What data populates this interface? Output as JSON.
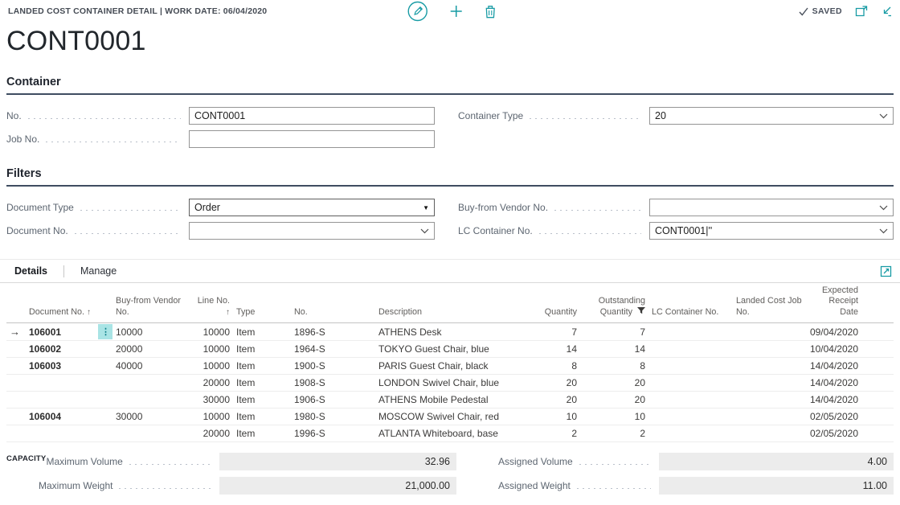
{
  "command_bar": {
    "caption": "LANDED COST CONTAINER DETAIL | WORK DATE: 06/04/2020",
    "saved_label": "SAVED"
  },
  "page": {
    "title": "CONT0001"
  },
  "icons": {
    "edit": "pencil-in-circle",
    "new": "plus",
    "delete": "trash",
    "saved_check": "check",
    "open_in_window": "popout-window",
    "collapse": "collapse-arrow",
    "expand_table": "expand-diagonal",
    "row_options": "vertical-dots",
    "selected_row": "arrow-right",
    "sort_ascending": "arrow-up",
    "filter": "funnel",
    "combo": "chevron-down",
    "select": "triangle-down"
  },
  "colors": {
    "accent_teal": "#179ba4",
    "heading_rule": "#3f4d61",
    "readonly_bg": "#ececec",
    "dots_button_bg": "#a9e4e5"
  },
  "container_section": {
    "heading": "Container",
    "fields": {
      "no": {
        "label": "No.",
        "value": "CONT0001"
      },
      "job_no": {
        "label": "Job No.",
        "value": ""
      },
      "container_type": {
        "label": "Container Type",
        "value": "20"
      }
    }
  },
  "filters_section": {
    "heading": "Filters",
    "fields": {
      "document_type": {
        "label": "Document Type",
        "value": "Order"
      },
      "document_no": {
        "label": "Document No.",
        "value": ""
      },
      "buy_from_vendor_no": {
        "label": "Buy-from Vendor No.",
        "value": ""
      },
      "lc_container_no": {
        "label": "LC Container No.",
        "value": "CONT0001|''"
      }
    }
  },
  "details": {
    "tabs": [
      {
        "label": "Details"
      },
      {
        "label": "Manage"
      }
    ],
    "columns": [
      {
        "key": "doc_no",
        "label": "Document No.",
        "sort": "asc",
        "align": "left"
      },
      {
        "key": "buy_from_vendor_no",
        "label": "Buy-from Vendor No.",
        "align": "left"
      },
      {
        "key": "line_no",
        "label": "Line No.",
        "sort": "asc",
        "align": "right"
      },
      {
        "key": "type",
        "label": "Type",
        "align": "left"
      },
      {
        "key": "no",
        "label": "No.",
        "align": "left"
      },
      {
        "key": "description",
        "label": "Description",
        "align": "left"
      },
      {
        "key": "quantity",
        "label": "Quantity",
        "align": "right"
      },
      {
        "key": "outstanding_quantity",
        "label": "Outstanding Quantity",
        "align": "right",
        "filtered": true
      },
      {
        "key": "lc_container_no",
        "label": "LC Container No.",
        "align": "left"
      },
      {
        "key": "landed_cost_job_no",
        "label": "Landed Cost Job No.",
        "align": "left"
      },
      {
        "key": "expected_receipt_date",
        "label": "Expected Receipt Date",
        "align": "right"
      }
    ],
    "rows": [
      {
        "selected": true,
        "doc_no": "106001",
        "buy_from_vendor_no": "10000",
        "line_no": "10000",
        "type": "Item",
        "no": "1896-S",
        "description": "ATHENS Desk",
        "quantity": "7",
        "outstanding_quantity": "7",
        "lc_container_no": "",
        "landed_cost_job_no": "",
        "expected_receipt_date": "09/04/2020"
      },
      {
        "selected": false,
        "doc_no": "106002",
        "buy_from_vendor_no": "20000",
        "line_no": "10000",
        "type": "Item",
        "no": "1964-S",
        "description": "TOKYO Guest Chair, blue",
        "quantity": "14",
        "outstanding_quantity": "14",
        "lc_container_no": "",
        "landed_cost_job_no": "",
        "expected_receipt_date": "10/04/2020"
      },
      {
        "selected": false,
        "doc_no": "106003",
        "buy_from_vendor_no": "40000",
        "line_no": "10000",
        "type": "Item",
        "no": "1900-S",
        "description": "PARIS Guest Chair, black",
        "quantity": "8",
        "outstanding_quantity": "8",
        "lc_container_no": "",
        "landed_cost_job_no": "",
        "expected_receipt_date": "14/04/2020"
      },
      {
        "selected": false,
        "doc_no": "",
        "buy_from_vendor_no": "",
        "line_no": "20000",
        "type": "Item",
        "no": "1908-S",
        "description": "LONDON Swivel Chair, blue",
        "quantity": "20",
        "outstanding_quantity": "20",
        "lc_container_no": "",
        "landed_cost_job_no": "",
        "expected_receipt_date": "14/04/2020"
      },
      {
        "selected": false,
        "doc_no": "",
        "buy_from_vendor_no": "",
        "line_no": "30000",
        "type": "Item",
        "no": "1906-S",
        "description": "ATHENS Mobile Pedestal",
        "quantity": "20",
        "outstanding_quantity": "20",
        "lc_container_no": "",
        "landed_cost_job_no": "",
        "expected_receipt_date": "14/04/2020"
      },
      {
        "selected": false,
        "doc_no": "106004",
        "buy_from_vendor_no": "30000",
        "line_no": "10000",
        "type": "Item",
        "no": "1980-S",
        "description": "MOSCOW Swivel Chair, red",
        "quantity": "10",
        "outstanding_quantity": "10",
        "lc_container_no": "",
        "landed_cost_job_no": "",
        "expected_receipt_date": "02/05/2020"
      },
      {
        "selected": false,
        "doc_no": "",
        "buy_from_vendor_no": "",
        "line_no": "20000",
        "type": "Item",
        "no": "1996-S",
        "description": "ATLANTA Whiteboard, base",
        "quantity": "2",
        "outstanding_quantity": "2",
        "lc_container_no": "",
        "landed_cost_job_no": "",
        "expected_receipt_date": "02/05/2020"
      }
    ]
  },
  "capacity": {
    "group_label": "CAPACITY",
    "maximum_volume": {
      "label": "Maximum Volume",
      "value": "32.96"
    },
    "maximum_weight": {
      "label": "Maximum Weight",
      "value": "21,000.00"
    },
    "assigned_volume": {
      "label": "Assigned Volume",
      "value": "4.00"
    },
    "assigned_weight": {
      "label": "Assigned Weight",
      "value": "11.00"
    }
  }
}
